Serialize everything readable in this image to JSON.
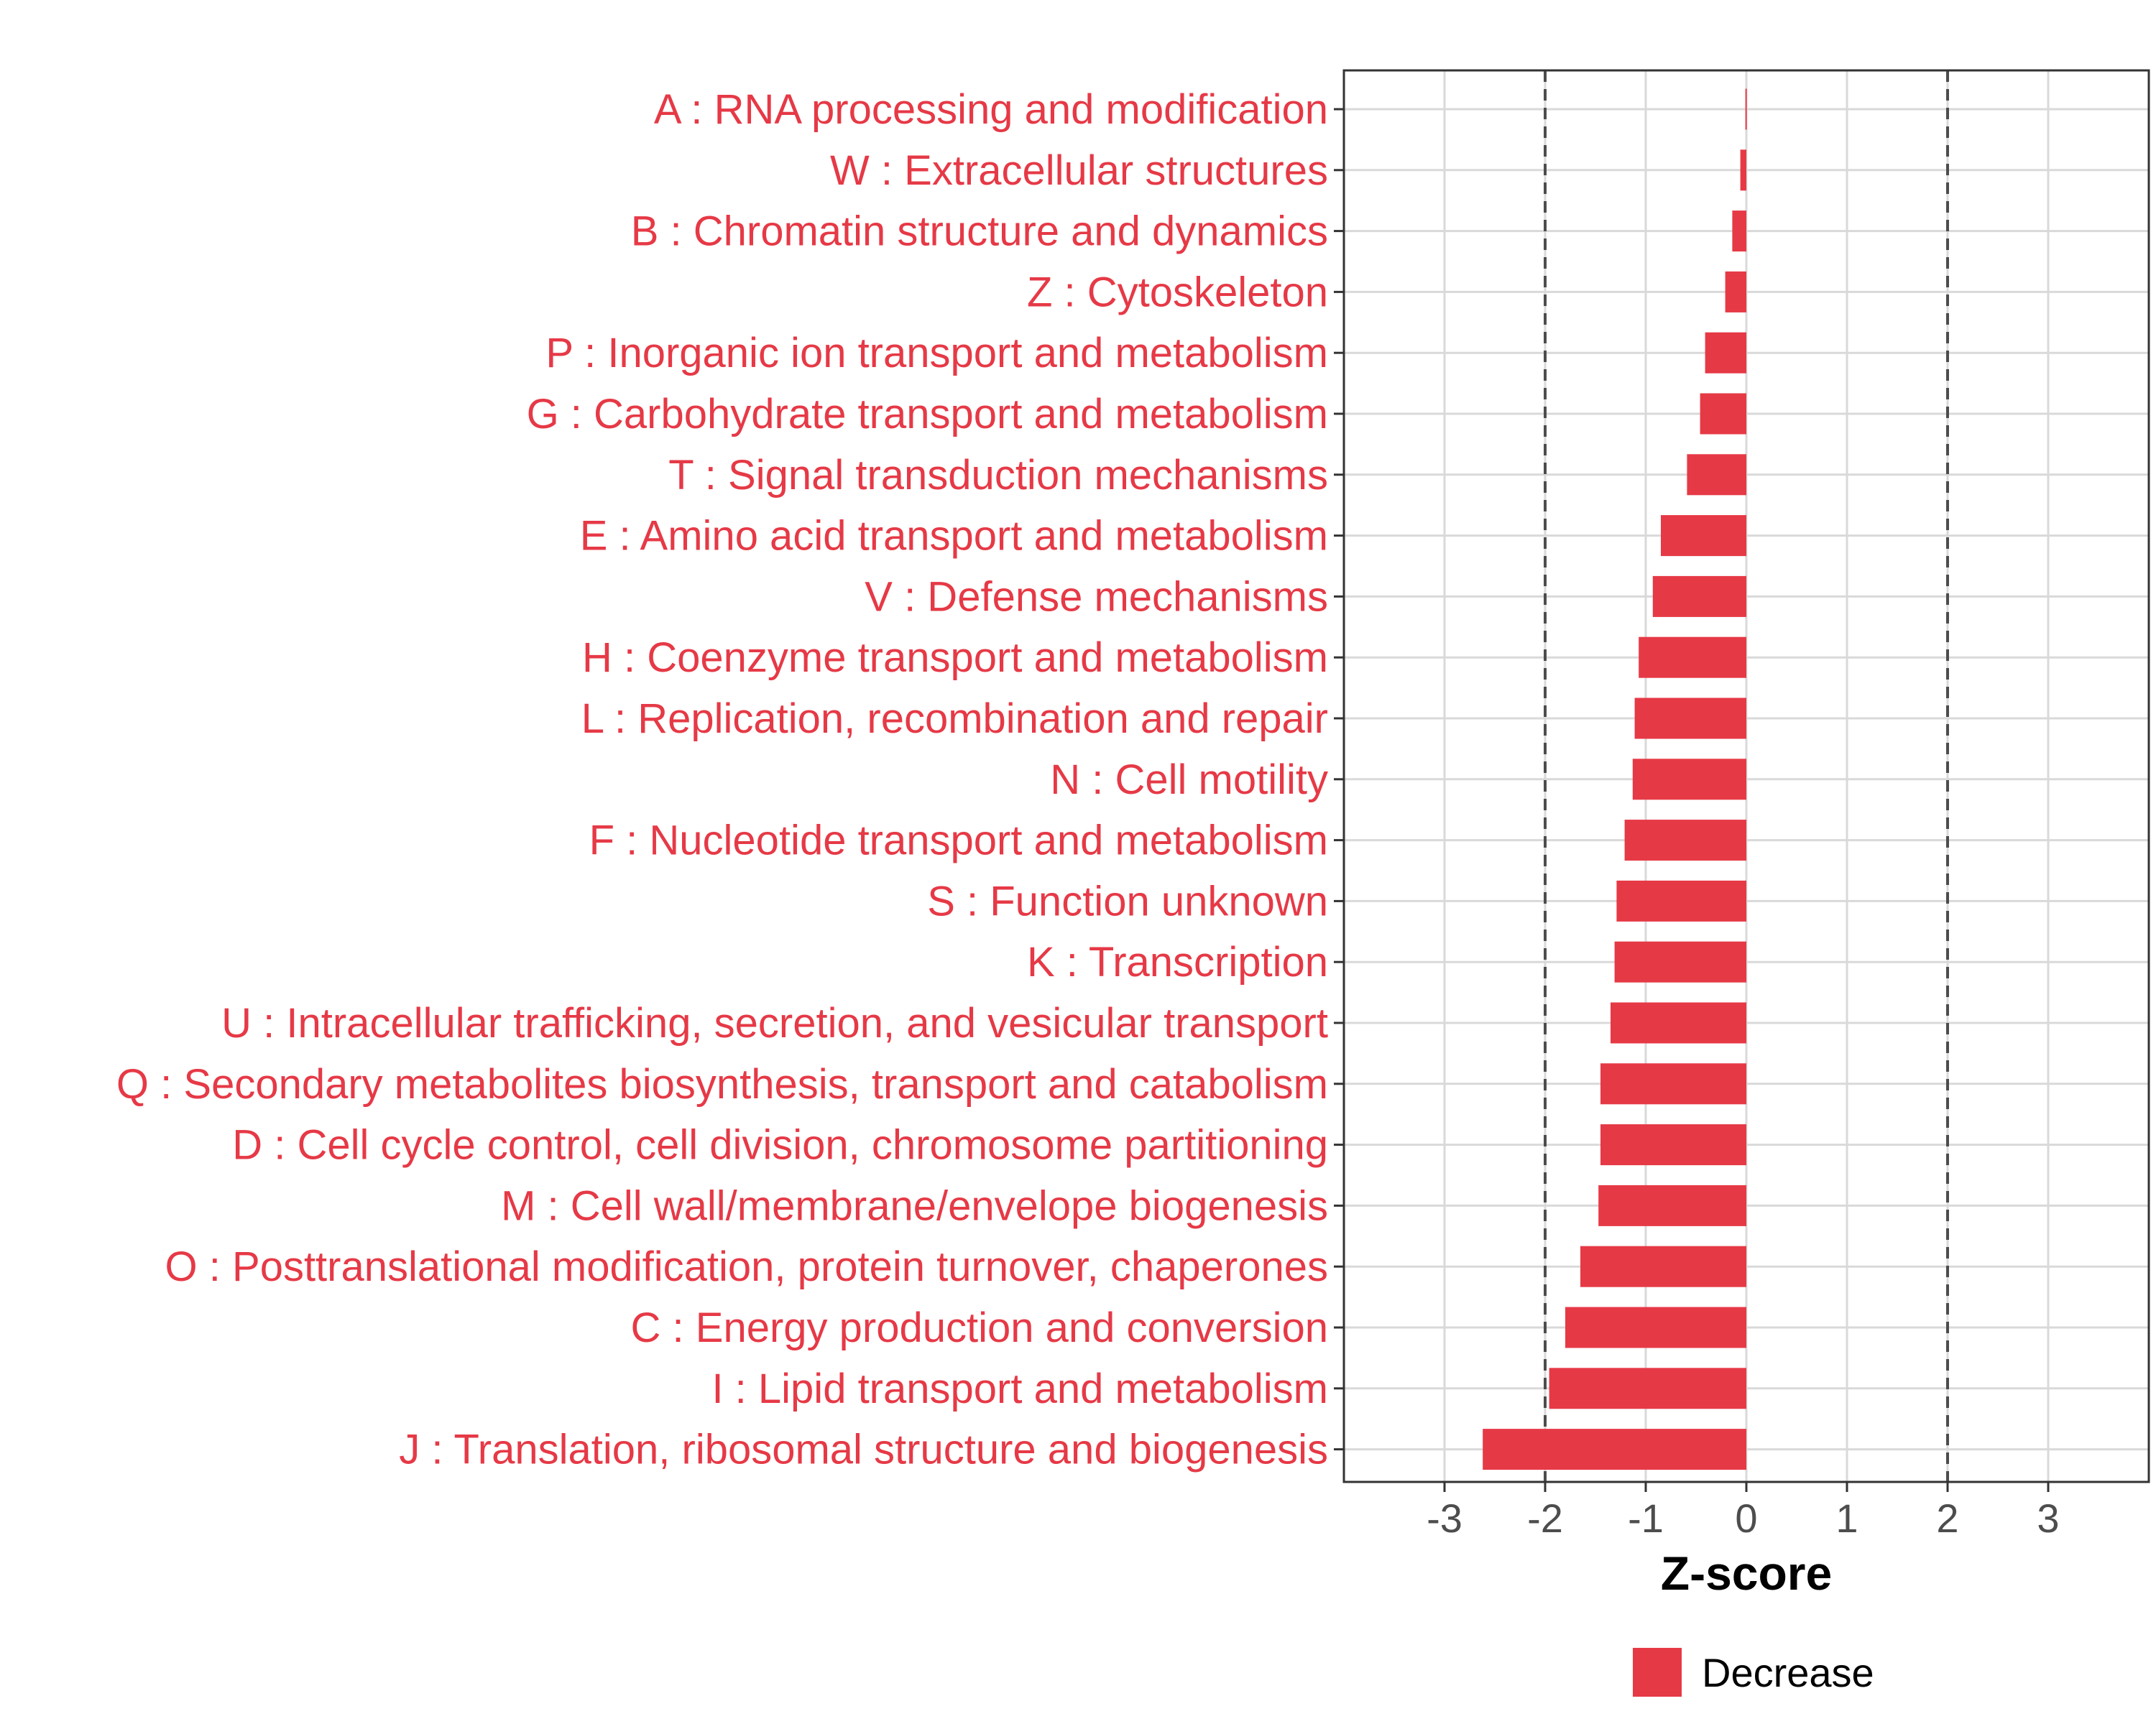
{
  "chart_data": {
    "type": "bar",
    "orientation": "horizontal",
    "categories": [
      "A : RNA processing and modification",
      "W : Extracellular structures",
      "B : Chromatin structure and dynamics",
      "Z : Cytoskeleton",
      "P : Inorganic ion transport and metabolism",
      "G : Carbohydrate transport and metabolism",
      "T : Signal transduction mechanisms",
      "E : Amino acid transport and metabolism",
      "V : Defense mechanisms",
      "H : Coenzyme transport and metabolism",
      "L : Replication, recombination and repair",
      "N : Cell motility",
      "F : Nucleotide transport and metabolism",
      "S : Function unknown",
      "K : Transcription",
      "U : Intracellular trafficking, secretion, and vesicular transport",
      "Q : Secondary metabolites biosynthesis, transport and catabolism",
      "D : Cell cycle control, cell division, chromosome partitioning",
      "M : Cell wall/membrane/envelope biogenesis",
      "O : Posttranslational modification, protein turnover, chaperones",
      "C : Energy production and conversion",
      "I : Lipid transport and metabolism",
      "J : Translation, ribosomal structure and biogenesis"
    ],
    "values": [
      -0.01,
      -0.06,
      -0.14,
      -0.21,
      -0.41,
      -0.46,
      -0.59,
      -0.85,
      -0.93,
      -1.07,
      -1.11,
      -1.13,
      -1.21,
      -1.29,
      -1.31,
      -1.35,
      -1.45,
      -1.45,
      -1.47,
      -1.65,
      -1.8,
      -1.96,
      -2.62
    ],
    "xlabel": "Z-score",
    "xlim": [
      -4,
      4
    ],
    "xticks": [
      -3,
      -2,
      -1,
      0,
      1,
      2,
      3
    ],
    "xtick_labels": [
      "-3",
      "-2",
      "-1",
      "0",
      "1",
      "2",
      "3"
    ],
    "reference_lines": [
      -2,
      2
    ],
    "legend": {
      "entries": [
        "Decrease"
      ],
      "position": "bottom"
    },
    "grid": true,
    "colors": {
      "bar": "#E63946",
      "label": "#E63946",
      "grid": "#D9D9D9",
      "reference_line": "#4D4D4D",
      "panel_border": "#333333"
    }
  }
}
